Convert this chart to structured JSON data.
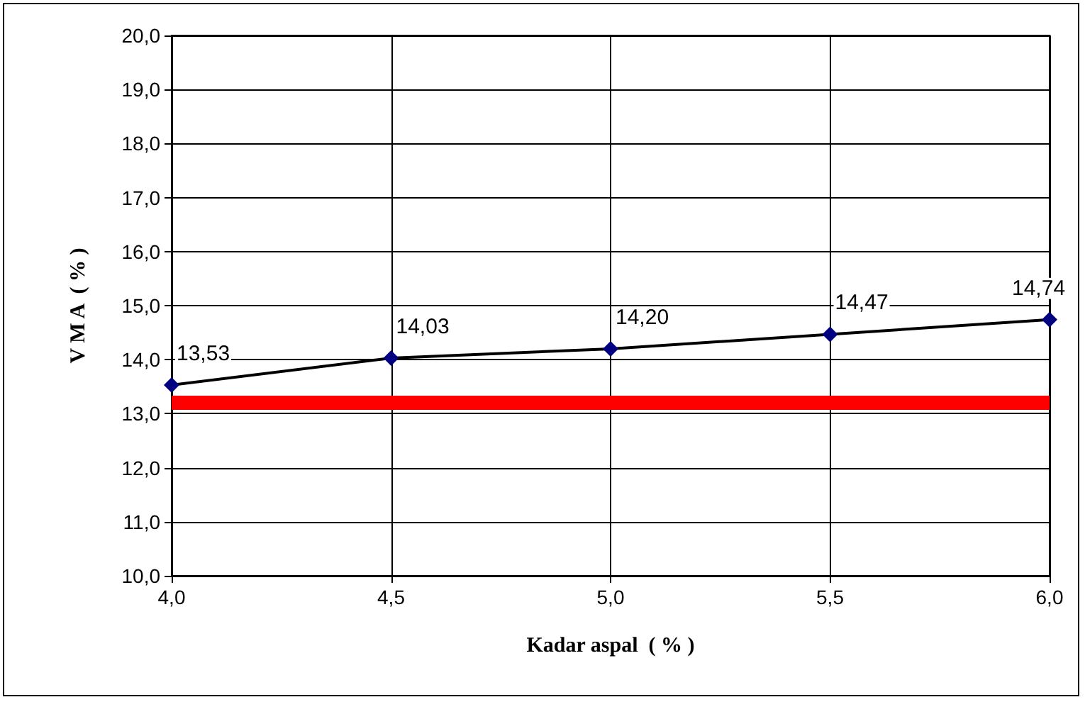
{
  "chart_data": {
    "type": "line",
    "xlabel": "Kadar aspal  ( % )",
    "ylabel": "V M A  ( % )",
    "x": [
      4.0,
      4.5,
      5.0,
      5.5,
      6.0
    ],
    "series": [
      {
        "color": "#000080",
        "values": [
          13.53,
          14.03,
          14.2,
          14.47,
          14.74
        ],
        "value_labels": [
          "13,53",
          "14,03",
          "14,20",
          "14,47",
          "14,74"
        ]
      }
    ],
    "xlim": [
      4.0,
      6.0
    ],
    "xticks": [
      {
        "value": 4,
        "label": "4,0"
      },
      {
        "value": 4.5,
        "label": "4,5"
      },
      {
        "value": 5,
        "label": "5,0"
      },
      {
        "value": 5.5,
        "label": "5,5"
      },
      {
        "value": 6,
        "label": "6,0"
      }
    ],
    "ylim": [
      10,
      20
    ],
    "yticks": [
      {
        "value": 10,
        "label": "10,0"
      },
      {
        "value": 11,
        "label": "11,0"
      },
      {
        "value": 12,
        "label": "12,0"
      },
      {
        "value": 13,
        "label": "13,0"
      },
      {
        "value": 14,
        "label": "14,0"
      },
      {
        "value": 15,
        "label": "15,0"
      },
      {
        "value": 16,
        "label": "16,0"
      },
      {
        "value": 17,
        "label": "17,0"
      },
      {
        "value": 18,
        "label": "18,0"
      },
      {
        "value": 19,
        "label": "19,0"
      },
      {
        "value": 20,
        "label": "20,0"
      }
    ],
    "ref_lines": [
      {
        "axis": "y",
        "value": 13.2,
        "color": "#ff0000"
      }
    ],
    "grid": true,
    "marker": "diamond",
    "line_style": "solid"
  }
}
